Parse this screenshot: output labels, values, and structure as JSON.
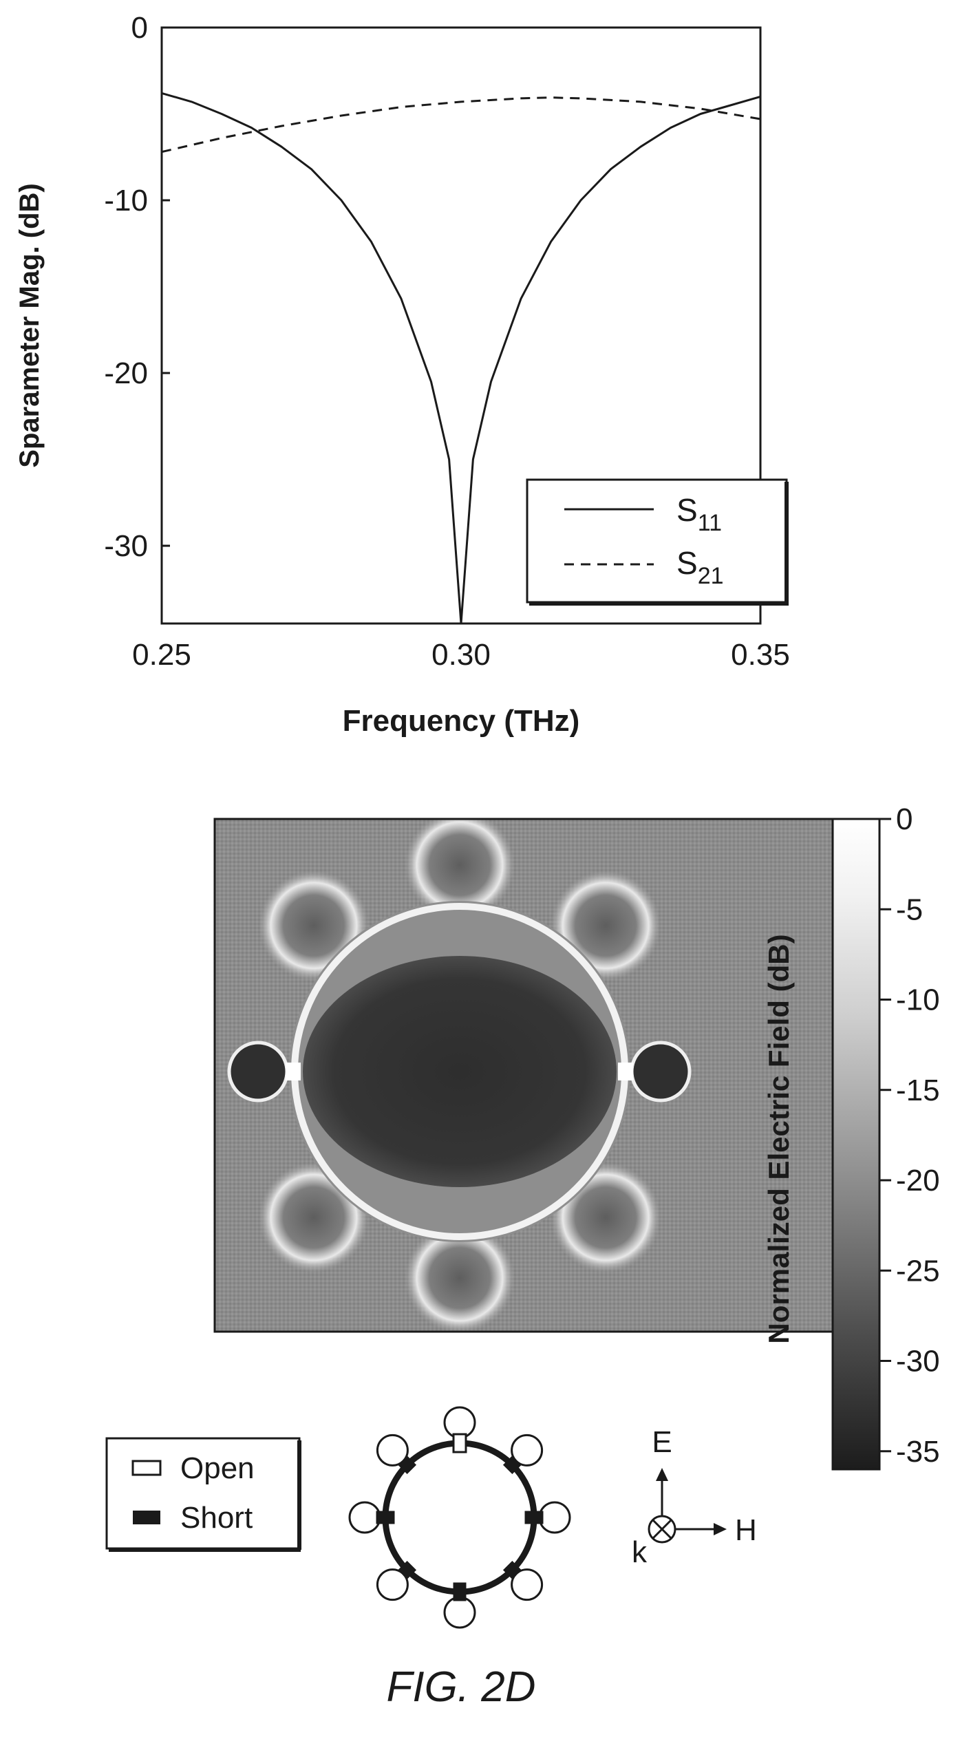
{
  "chart_data": [
    {
      "type": "line",
      "title": "",
      "xlabel": "Frequency (THz)",
      "ylabel": "Sparameter Mag. (dB)",
      "xlim": [
        0.25,
        0.35
      ],
      "ylim": [
        -34.5,
        0
      ],
      "xticks": [
        "0.25",
        "0.30",
        "0.35"
      ],
      "yticks": [
        "0",
        "-10",
        "-20",
        "-30"
      ],
      "legend_position": "bottom-right",
      "grid": false,
      "series": [
        {
          "name": "S",
          "name_sub": "11",
          "style": "solid",
          "x": [
            0.25,
            0.255,
            0.26,
            0.265,
            0.27,
            0.275,
            0.28,
            0.285,
            0.29,
            0.295,
            0.298,
            0.3,
            0.302,
            0.305,
            0.31,
            0.315,
            0.32,
            0.325,
            0.33,
            0.335,
            0.34,
            0.345,
            0.35
          ],
          "y": [
            -3.8,
            -4.3,
            -5.0,
            -5.8,
            -6.9,
            -8.2,
            -10.0,
            -12.4,
            -15.7,
            -20.5,
            -25.0,
            -34.5,
            -25.0,
            -20.5,
            -15.7,
            -12.4,
            -10.0,
            -8.2,
            -6.9,
            -5.8,
            -5.0,
            -4.5,
            -4.0
          ]
        },
        {
          "name": "S",
          "name_sub": "21",
          "style": "dashed",
          "x": [
            0.25,
            0.26,
            0.27,
            0.28,
            0.29,
            0.3,
            0.31,
            0.315,
            0.32,
            0.33,
            0.34,
            0.35
          ],
          "y": [
            -7.2,
            -6.4,
            -5.7,
            -5.1,
            -4.6,
            -4.3,
            -4.1,
            -4.05,
            -4.1,
            -4.3,
            -4.7,
            -5.3
          ]
        }
      ]
    },
    {
      "type": "heatmap",
      "title": "",
      "colorbar_label": "Normalized Electric Field (dB)",
      "colorbar_range": [
        -36,
        0
      ],
      "colorbar_ticks": [
        "0",
        "-5",
        "-10",
        "-15",
        "-20",
        "-25",
        "-30",
        "-35"
      ],
      "colormap": "grayscale (dark = low, light = high)"
    }
  ],
  "legend_box": {
    "open_label": "Open",
    "short_label": "Short"
  },
  "axes_indicator": {
    "e_label": "E",
    "h_label": "H",
    "k_label": "k"
  },
  "figure_caption": "FIG. 2D",
  "colors": {
    "ink": "#1a1a1a",
    "background": "#ffffff"
  }
}
